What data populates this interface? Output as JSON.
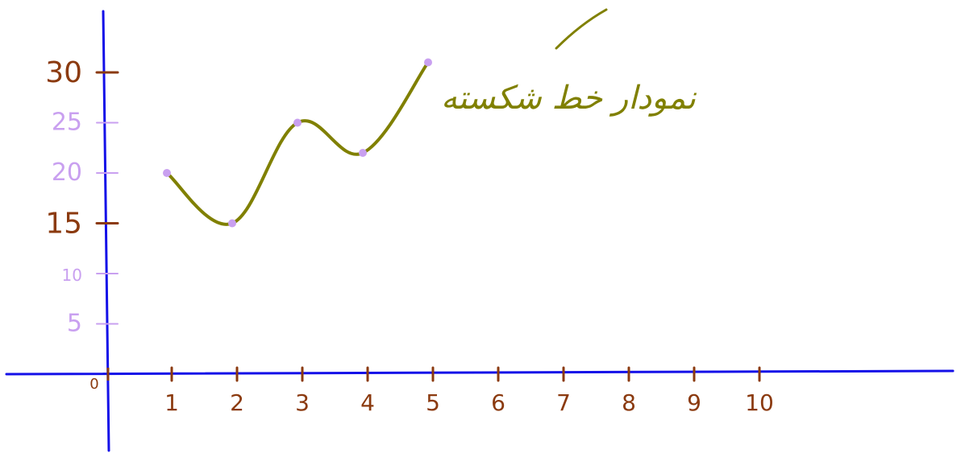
{
  "chart_data": {
    "type": "line",
    "title": "نمودار خط شکسته",
    "xlabel": "",
    "ylabel": "",
    "origin_label": "0",
    "x_ticks": [
      "1",
      "2",
      "3",
      "4",
      "5",
      "6",
      "7",
      "8",
      "9",
      "10"
    ],
    "y_ticks": [
      "5",
      "10",
      "15",
      "20",
      "25",
      "30"
    ],
    "xlim": [
      0,
      10
    ],
    "ylim": [
      0,
      30
    ],
    "grid": false,
    "series": [
      {
        "x": [
          1,
          2,
          3,
          4,
          5
        ],
        "y": [
          20,
          15,
          25,
          22,
          31
        ]
      }
    ],
    "colors": {
      "axis": "#1410e8",
      "line": "#808000",
      "tick_brown": "#8b3a0f",
      "tick_lavender": "#c9a0f0",
      "point": "#c9a0f0",
      "title": "#808000"
    }
  }
}
